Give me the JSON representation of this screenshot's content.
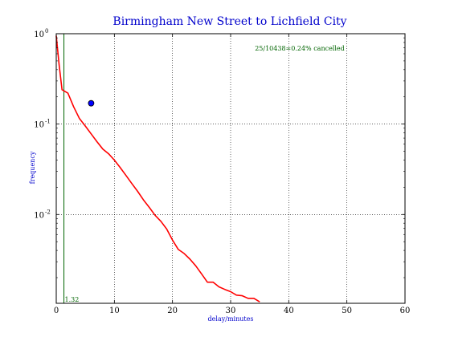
{
  "chart_data": {
    "type": "line",
    "title": "Birmingham New Street to Lichfield City",
    "xlabel": "delay/minutes",
    "ylabel": "frequency",
    "xlim": [
      0,
      60
    ],
    "ylim": [
      0.00104,
      1.0
    ],
    "yscale": "log",
    "grid": true,
    "x_ticks": [
      "0",
      "10",
      "20",
      "30",
      "40",
      "50",
      "60"
    ],
    "x_tick_values": [
      0,
      10,
      20,
      30,
      40,
      50,
      60
    ],
    "y_ticks": [
      {
        "value": 1.0,
        "base": "10",
        "exp": "0"
      },
      {
        "value": 0.1,
        "base": "10",
        "exp": "-1"
      },
      {
        "value": 0.01,
        "base": "10",
        "exp": "-2"
      }
    ],
    "series": [
      {
        "color": "#ff0000",
        "x": [
          0,
          0.5,
          1,
          2,
          3,
          4,
          5,
          6,
          7,
          8,
          9,
          10,
          11,
          12,
          13,
          14,
          15,
          16,
          17,
          18,
          19,
          20,
          21,
          22,
          23,
          24,
          25,
          26,
          27,
          28,
          29,
          30,
          31,
          32,
          33,
          34,
          35
        ],
        "y": [
          0.95,
          0.45,
          0.24,
          0.22,
          0.155,
          0.115,
          0.095,
          0.078,
          0.064,
          0.053,
          0.047,
          0.04,
          0.033,
          0.027,
          0.022,
          0.018,
          0.0145,
          0.012,
          0.0098,
          0.0084,
          0.0069,
          0.0052,
          0.0041,
          0.0037,
          0.0032,
          0.0027,
          0.0022,
          0.00178,
          0.00178,
          0.00158,
          0.00148,
          0.0014,
          0.00128,
          0.00126,
          0.00118,
          0.00118,
          0.00108
        ]
      }
    ],
    "marker": {
      "x": 6,
      "y": 0.17,
      "color": "#0000ff"
    },
    "vline": {
      "x": 1.32,
      "color": "#006400",
      "label": "1.32"
    },
    "annotation": "25/10438=0.24% cancelled"
  }
}
